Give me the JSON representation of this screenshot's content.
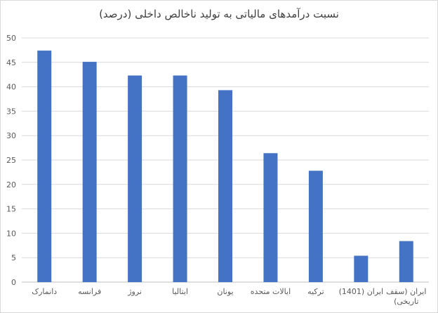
{
  "chart_data": {
    "type": "bar",
    "title": "نسبت درآمدهای مالیاتی به تولید ناخالص داخلی (درصد)",
    "categories": [
      [
        "دانمارک"
      ],
      [
        "فرانسه"
      ],
      [
        "نروژ"
      ],
      [
        "ایتالیا"
      ],
      [
        "یونان"
      ],
      [
        "ایالات متحده"
      ],
      [
        "ترکیه"
      ],
      [
        "ایران (1401)"
      ],
      [
        "ایران (سقف",
        "تاریخی)"
      ]
    ],
    "values": [
      47.4,
      45.1,
      42.3,
      42.3,
      39.3,
      26.4,
      22.8,
      5.4,
      8.4
    ],
    "ylim": [
      0,
      50
    ],
    "yticks": [
      0,
      5,
      10,
      15,
      20,
      25,
      30,
      35,
      40,
      45,
      50
    ],
    "grid": true,
    "colors": {
      "bar": "#4472c4",
      "grid": "#d9d9d9",
      "axis": "#bfbfbf"
    }
  }
}
